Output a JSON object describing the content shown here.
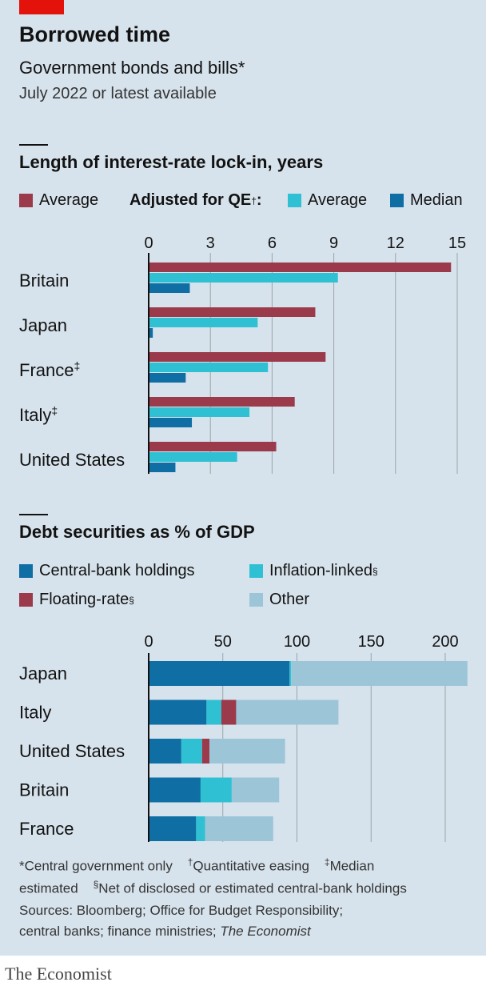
{
  "header": {
    "title": "Borrowed time",
    "subtitle": "Government bonds and bills*",
    "date_note": "July 2022 or latest available"
  },
  "colors": {
    "background": "#d7e3ec",
    "crimson": "#9b3a4b",
    "cyan": "#2fc1d3",
    "dark_blue": "#0f6ea3",
    "light_blue": "#9cc6d8",
    "axis": "#121212",
    "gridline": "#9aa3a9"
  },
  "chart1": {
    "title": "Length of interest-rate lock-in, years",
    "legend": {
      "average": "Average",
      "adjusted_heading": "Adjusted for QE",
      "adjusted_mark": "†",
      "adjusted_colon": ":",
      "qe_average": "Average",
      "qe_median": "Median"
    },
    "ticks": [
      "0",
      "3",
      "6",
      "9",
      "12",
      "15"
    ],
    "rows": [
      {
        "label": "Britain",
        "mark": ""
      },
      {
        "label": "Japan",
        "mark": ""
      },
      {
        "label": "France",
        "mark": "‡"
      },
      {
        "label": "Italy",
        "mark": "‡"
      },
      {
        "label": "United States",
        "mark": ""
      }
    ]
  },
  "chart2": {
    "title": "Debt securities as % of GDP",
    "legend": {
      "central_bank": "Central-bank holdings",
      "inflation_linked": "Inflation-linked",
      "inflation_mark": "§",
      "floating_rate": "Floating-rate",
      "floating_mark": "§",
      "other": "Other"
    },
    "ticks": [
      "0",
      "50",
      "100",
      "150",
      "200"
    ],
    "rows": [
      "Japan",
      "Italy",
      "United States",
      "Britain",
      "France"
    ]
  },
  "chart_data": [
    {
      "type": "bar",
      "orientation": "horizontal",
      "title": "Length of interest-rate lock-in, years",
      "categories": [
        "Britain",
        "Japan",
        "France",
        "Italy",
        "United States"
      ],
      "series": [
        {
          "name": "Average",
          "color": "#9b3a4b",
          "values": [
            14.7,
            8.1,
            8.6,
            7.1,
            6.2
          ]
        },
        {
          "name": "Adjusted for QE: Average",
          "color": "#2fc1d3",
          "values": [
            9.2,
            5.3,
            5.8,
            4.9,
            4.3
          ]
        },
        {
          "name": "Adjusted for QE: Median",
          "color": "#0f6ea3",
          "values": [
            2.0,
            0.2,
            1.8,
            2.1,
            1.3
          ]
        }
      ],
      "xlim": [
        0,
        15
      ],
      "xticks": [
        0,
        3,
        6,
        9,
        12,
        15
      ],
      "grid": true,
      "legend_position": "top"
    },
    {
      "type": "bar",
      "orientation": "horizontal",
      "stacked": true,
      "title": "Debt securities as % of GDP",
      "categories": [
        "Japan",
        "Italy",
        "United States",
        "Britain",
        "France"
      ],
      "series": [
        {
          "name": "Central-bank holdings",
          "color": "#0f6ea3",
          "values": [
            95,
            39,
            22,
            35,
            32
          ]
        },
        {
          "name": "Inflation-linked",
          "color": "#2fc1d3",
          "values": [
            1,
            10,
            14,
            21,
            6
          ]
        },
        {
          "name": "Floating-rate",
          "color": "#9b3a4b",
          "values": [
            0,
            10,
            5,
            0,
            0
          ]
        },
        {
          "name": "Other",
          "color": "#9cc6d8",
          "values": [
            119,
            69,
            51,
            32,
            46
          ]
        }
      ],
      "xlim": [
        0,
        215
      ],
      "xticks": [
        0,
        50,
        100,
        150,
        200
      ],
      "grid": true,
      "legend_position": "top"
    }
  ],
  "footnotes": {
    "line1": {
      "a": "*Central government only",
      "b_mark": "†",
      "b": "Quantitative easing",
      "c_mark": "‡",
      "c": "Median"
    },
    "line2": {
      "a": "estimated",
      "b_mark": "§",
      "b": "Net of disclosed or estimated central-bank holdings"
    },
    "sources_line1": "Sources: Bloomberg; Office for Budget Responsibility;",
    "sources_line2_plain": "central banks; finance ministries; ",
    "sources_line2_italic": "The Economist"
  },
  "brand": "The Economist"
}
